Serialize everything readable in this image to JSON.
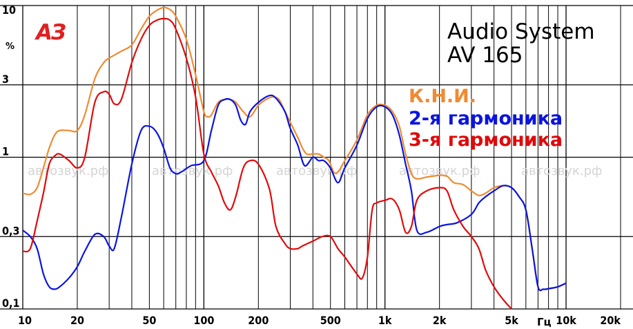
{
  "chart_data": {
    "type": "line",
    "title": "Audio System",
    "subtitle": "AV 165",
    "logo_text": "АЗ",
    "watermark": "автозвук.рф",
    "ylabel": "%",
    "xlabel": "Гц",
    "x_scale": "log",
    "y_scale": "log",
    "xlim": [
      10,
      20000
    ],
    "ylim": [
      0.1,
      10
    ],
    "grid": true,
    "legend_position": "upper-right",
    "x_ticks": [
      {
        "value": 10,
        "label": "10"
      },
      {
        "value": 20,
        "label": "20"
      },
      {
        "value": 50,
        "label": "50"
      },
      {
        "value": 100,
        "label": "100"
      },
      {
        "value": 200,
        "label": "200"
      },
      {
        "value": 500,
        "label": "500"
      },
      {
        "value": 1000,
        "label": "1k"
      },
      {
        "value": 2000,
        "label": "2k"
      },
      {
        "value": 5000,
        "label": "5k"
      },
      {
        "value": 10000,
        "label": "10k"
      },
      {
        "value": 20000,
        "label": "20k"
      }
    ],
    "y_ticks": [
      {
        "value": 10,
        "label": "10"
      },
      {
        "value": 3,
        "label": "3"
      },
      {
        "value": 1,
        "label": "1"
      },
      {
        "value": 0.3,
        "label": "0,3"
      },
      {
        "value": 0.1,
        "label": "0,1"
      }
    ],
    "series": [
      {
        "name": "К.Н.И.",
        "color": "#f08a30",
        "points": [
          [
            10,
            0.58
          ],
          [
            11,
            0.57
          ],
          [
            12,
            0.63
          ],
          [
            13,
            0.85
          ],
          [
            14,
            1.15
          ],
          [
            15,
            1.4
          ],
          [
            16,
            1.5
          ],
          [
            18,
            1.5
          ],
          [
            20,
            1.5
          ],
          [
            22,
            1.9
          ],
          [
            25,
            3.3
          ],
          [
            28,
            4.2
          ],
          [
            30,
            4.5
          ],
          [
            35,
            5.0
          ],
          [
            40,
            5.5
          ],
          [
            45,
            7.0
          ],
          [
            50,
            8.5
          ],
          [
            55,
            9.3
          ],
          [
            60,
            9.7
          ],
          [
            65,
            9.4
          ],
          [
            70,
            8.5
          ],
          [
            80,
            6.0
          ],
          [
            90,
            3.5
          ],
          [
            100,
            2.0
          ],
          [
            105,
            1.85
          ],
          [
            110,
            1.9
          ],
          [
            120,
            2.3
          ],
          [
            130,
            2.4
          ],
          [
            140,
            2.4
          ],
          [
            150,
            2.3
          ],
          [
            165,
            2.0
          ],
          [
            180,
            1.85
          ],
          [
            200,
            2.2
          ],
          [
            220,
            2.4
          ],
          [
            240,
            2.5
          ],
          [
            260,
            2.4
          ],
          [
            280,
            2.0
          ],
          [
            300,
            1.7
          ],
          [
            330,
            1.35
          ],
          [
            350,
            1.15
          ],
          [
            370,
            1.05
          ],
          [
            400,
            1.05
          ],
          [
            430,
            1.05
          ],
          [
            460,
            1.0
          ],
          [
            490,
            0.95
          ],
          [
            520,
            0.8
          ],
          [
            550,
            0.8
          ],
          [
            600,
            0.95
          ],
          [
            700,
            1.3
          ],
          [
            800,
            1.9
          ],
          [
            900,
            2.2
          ],
          [
            1000,
            2.2
          ],
          [
            1100,
            2.0
          ],
          [
            1200,
            1.6
          ],
          [
            1300,
            1.05
          ],
          [
            1400,
            0.78
          ],
          [
            1500,
            0.72
          ],
          [
            1700,
            0.74
          ],
          [
            2000,
            0.76
          ],
          [
            2200,
            0.75
          ],
          [
            2400,
            0.68
          ],
          [
            2700,
            0.66
          ],
          [
            3000,
            0.6
          ],
          [
            3300,
            0.56
          ],
          [
            3600,
            0.58
          ],
          [
            4000,
            0.63
          ],
          [
            4500,
            0.65
          ],
          [
            5000,
            0.63
          ],
          [
            5500,
            0.55
          ],
          [
            6000,
            0.45
          ],
          [
            6500,
            0.25
          ],
          [
            7000,
            0.14
          ],
          [
            7500,
            0.135
          ],
          [
            8000,
            0.136
          ],
          [
            9000,
            0.14
          ],
          [
            10000,
            0.148
          ]
        ]
      },
      {
        "name": "2-я гармоника",
        "color": "#0a14e0",
        "points": [
          [
            10,
            0.33
          ],
          [
            11,
            0.3
          ],
          [
            12,
            0.25
          ],
          [
            13,
            0.17
          ],
          [
            14,
            0.14
          ],
          [
            15,
            0.135
          ],
          [
            16,
            0.14
          ],
          [
            18,
            0.16
          ],
          [
            20,
            0.19
          ],
          [
            22,
            0.24
          ],
          [
            25,
            0.31
          ],
          [
            28,
            0.3
          ],
          [
            30,
            0.26
          ],
          [
            32,
            0.25
          ],
          [
            35,
            0.4
          ],
          [
            40,
            0.9
          ],
          [
            45,
            1.5
          ],
          [
            50,
            1.6
          ],
          [
            55,
            1.45
          ],
          [
            60,
            1.15
          ],
          [
            65,
            0.85
          ],
          [
            70,
            0.78
          ],
          [
            75,
            0.8
          ],
          [
            85,
            0.88
          ],
          [
            100,
            0.95
          ],
          [
            110,
            1.5
          ],
          [
            120,
            2.2
          ],
          [
            130,
            2.4
          ],
          [
            140,
            2.4
          ],
          [
            150,
            2.2
          ],
          [
            160,
            1.75
          ],
          [
            170,
            1.65
          ],
          [
            180,
            2.0
          ],
          [
            200,
            2.3
          ],
          [
            230,
            2.55
          ],
          [
            250,
            2.45
          ],
          [
            280,
            2.0
          ],
          [
            300,
            1.55
          ],
          [
            330,
            1.2
          ],
          [
            360,
            0.88
          ],
          [
            400,
            1.0
          ],
          [
            430,
            0.95
          ],
          [
            460,
            0.95
          ],
          [
            500,
            0.85
          ],
          [
            550,
            0.68
          ],
          [
            600,
            0.85
          ],
          [
            700,
            1.2
          ],
          [
            800,
            1.8
          ],
          [
            900,
            2.15
          ],
          [
            1000,
            2.15
          ],
          [
            1100,
            1.9
          ],
          [
            1200,
            1.4
          ],
          [
            1300,
            0.9
          ],
          [
            1400,
            0.6
          ],
          [
            1500,
            0.33
          ],
          [
            1700,
            0.32
          ],
          [
            2000,
            0.35
          ],
          [
            2200,
            0.36
          ],
          [
            2500,
            0.37
          ],
          [
            3000,
            0.42
          ],
          [
            3300,
            0.5
          ],
          [
            3600,
            0.55
          ],
          [
            4000,
            0.6
          ],
          [
            4500,
            0.65
          ],
          [
            5000,
            0.63
          ],
          [
            5500,
            0.55
          ],
          [
            6000,
            0.45
          ],
          [
            6500,
            0.25
          ],
          [
            7000,
            0.14
          ],
          [
            7500,
            0.135
          ],
          [
            8000,
            0.136
          ],
          [
            9000,
            0.14
          ],
          [
            10000,
            0.148
          ]
        ]
      },
      {
        "name": "3-я гармоника",
        "color": "#e00a0a",
        "points": [
          [
            10,
            0.24
          ],
          [
            11,
            0.25
          ],
          [
            12,
            0.38
          ],
          [
            13,
            0.58
          ],
          [
            14,
            0.9
          ],
          [
            15,
            1.02
          ],
          [
            16,
            1.05
          ],
          [
            18,
            0.95
          ],
          [
            20,
            0.85
          ],
          [
            22,
            1.0
          ],
          [
            25,
            2.3
          ],
          [
            28,
            2.7
          ],
          [
            30,
            2.6
          ],
          [
            32,
            2.25
          ],
          [
            35,
            2.4
          ],
          [
            40,
            4.2
          ],
          [
            45,
            6.0
          ],
          [
            50,
            7.4
          ],
          [
            55,
            8.0
          ],
          [
            60,
            8.2
          ],
          [
            65,
            8.0
          ],
          [
            70,
            7.0
          ],
          [
            80,
            4.5
          ],
          [
            90,
            2.5
          ],
          [
            100,
            1.05
          ],
          [
            110,
            0.8
          ],
          [
            120,
            0.65
          ],
          [
            130,
            0.5
          ],
          [
            140,
            0.45
          ],
          [
            150,
            0.55
          ],
          [
            165,
            0.85
          ],
          [
            180,
            0.95
          ],
          [
            200,
            0.9
          ],
          [
            230,
            0.62
          ],
          [
            250,
            0.35
          ],
          [
            280,
            0.27
          ],
          [
            300,
            0.25
          ],
          [
            330,
            0.25
          ],
          [
            350,
            0.26
          ],
          [
            400,
            0.28
          ],
          [
            450,
            0.3
          ],
          [
            500,
            0.3
          ],
          [
            550,
            0.25
          ],
          [
            600,
            0.22
          ],
          [
            700,
            0.17
          ],
          [
            750,
            0.16
          ],
          [
            800,
            0.22
          ],
          [
            850,
            0.45
          ],
          [
            900,
            0.5
          ],
          [
            1000,
            0.52
          ],
          [
            1100,
            0.53
          ],
          [
            1200,
            0.45
          ],
          [
            1300,
            0.32
          ],
          [
            1400,
            0.35
          ],
          [
            1500,
            0.52
          ],
          [
            1700,
            0.6
          ],
          [
            2000,
            0.63
          ],
          [
            2200,
            0.6
          ],
          [
            2400,
            0.45
          ],
          [
            2700,
            0.35
          ],
          [
            3000,
            0.3
          ],
          [
            3300,
            0.25
          ],
          [
            3600,
            0.18
          ],
          [
            4000,
            0.14
          ],
          [
            4500,
            0.115
          ],
          [
            5000,
            0.1
          ]
        ]
      }
    ]
  }
}
